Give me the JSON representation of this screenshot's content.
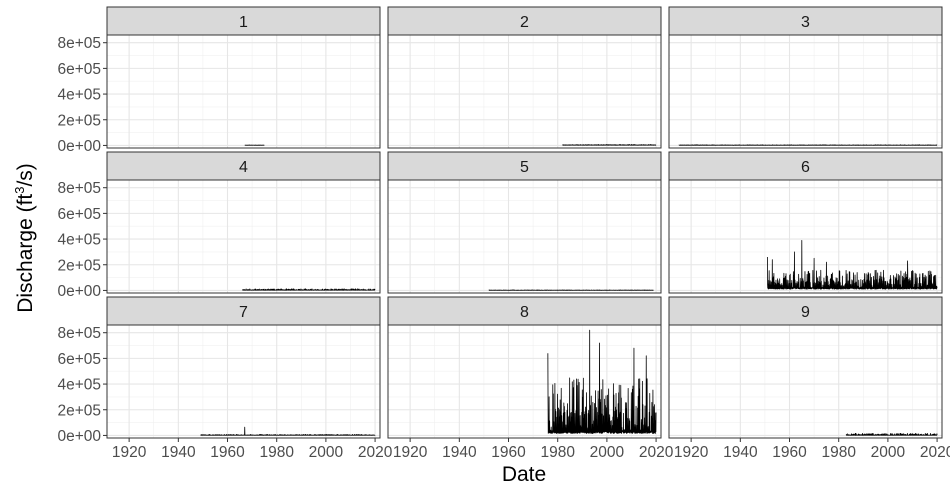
{
  "chart_data": {
    "type": "line",
    "layout": "facet-grid 3x3",
    "xlabel": "Date",
    "ylabel_main": "Discharge (ft",
    "ylabel_sup": "3",
    "ylabel_tail": "/s)",
    "xlim": [
      1911,
      2022
    ],
    "ylim": [
      -20000,
      860000
    ],
    "x_ticks": [
      "1920",
      "1940",
      "1960",
      "1980",
      "2000",
      "2020"
    ],
    "x_tick_values": [
      1920,
      1940,
      1960,
      1980,
      2000,
      2020
    ],
    "y_ticks": [
      "0e+00",
      "2e+05",
      "4e+05",
      "6e+05",
      "8e+05"
    ],
    "y_tick_values": [
      0,
      200000,
      400000,
      600000,
      800000
    ],
    "grid": true,
    "line_color": "#000000",
    "panels": [
      {
        "label": "1",
        "start": 1967,
        "end": 1975,
        "base": 2000,
        "amp": 1500,
        "peaks": []
      },
      {
        "label": "2",
        "start": 1982,
        "end": 2020,
        "base": 3000,
        "amp": 4000,
        "peaks": []
      },
      {
        "label": "3",
        "start": 1915,
        "end": 2020,
        "base": 2000,
        "amp": 3000,
        "peaks": []
      },
      {
        "label": "4",
        "start": 1966,
        "end": 2020,
        "base": 3000,
        "amp": 10000,
        "peaks": []
      },
      {
        "label": "5",
        "start": 1952,
        "end": 2019,
        "base": 1500,
        "amp": 2500,
        "peaks": []
      },
      {
        "label": "6",
        "start": 1951,
        "end": 2020,
        "base": 20000,
        "amp": 140000,
        "peaks": [
          [
            1951,
            260000
          ],
          [
            1953,
            240000
          ],
          [
            1962,
            300000
          ],
          [
            1965,
            390000
          ],
          [
            1970,
            250000
          ],
          [
            1975,
            220000
          ],
          [
            2008,
            230000
          ]
        ]
      },
      {
        "label": "7",
        "start": 1949,
        "end": 2020,
        "base": 2000,
        "amp": 6000,
        "peaks": [
          [
            1967,
            65000
          ]
        ]
      },
      {
        "label": "8",
        "start": 1976,
        "end": 2020,
        "base": 30000,
        "amp": 420000,
        "peaks": [
          [
            1976,
            640000
          ],
          [
            1993,
            820000
          ],
          [
            1997,
            720000
          ],
          [
            2011,
            680000
          ],
          [
            2016,
            620000
          ]
        ]
      },
      {
        "label": "9",
        "start": 1983,
        "end": 2020,
        "base": 2000,
        "amp": 14000,
        "peaks": []
      }
    ]
  }
}
